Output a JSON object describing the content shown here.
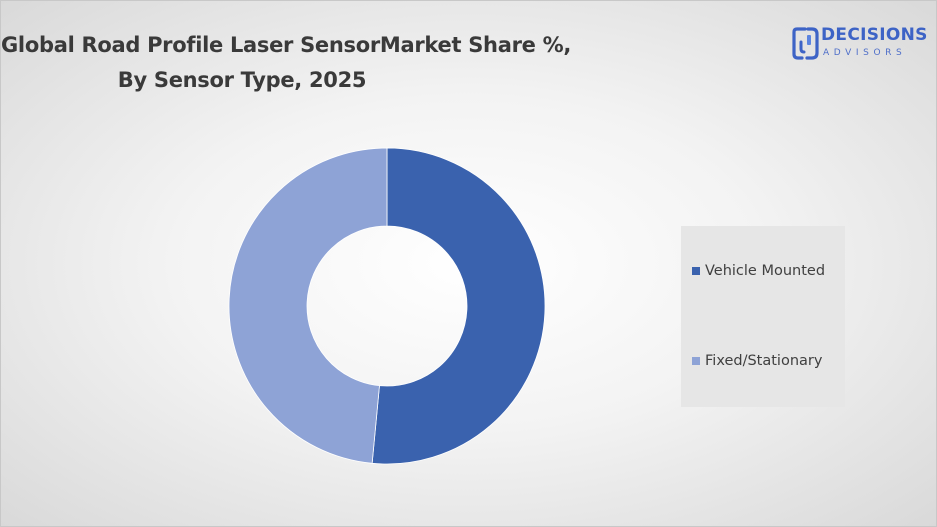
{
  "title_lines": [
    "Global Road Profile Laser SensorMarket Share %,",
    "By Sensor Type, 2025"
  ],
  "logo": {
    "word": "DECISIONS",
    "sub": "ADVISORS",
    "mark_icon": "decisions-advisors-logo-icon"
  },
  "colors": {
    "vehicle_mounted": "#3a62ae",
    "fixed_stationary": "#8ea3d6",
    "brand": "#3d63c6"
  },
  "chart_data": {
    "type": "pie",
    "variant": "donut",
    "title": "Global Road Profile Laser SensorMarket Share %, By Sensor Type, 2025",
    "labels": [
      "Vehicle Mounted",
      "Fixed/Stationary"
    ],
    "values": [
      51.5,
      48.5
    ],
    "unit": "%",
    "legend": "right",
    "start_angle": "12 o'clock, clockwise"
  }
}
